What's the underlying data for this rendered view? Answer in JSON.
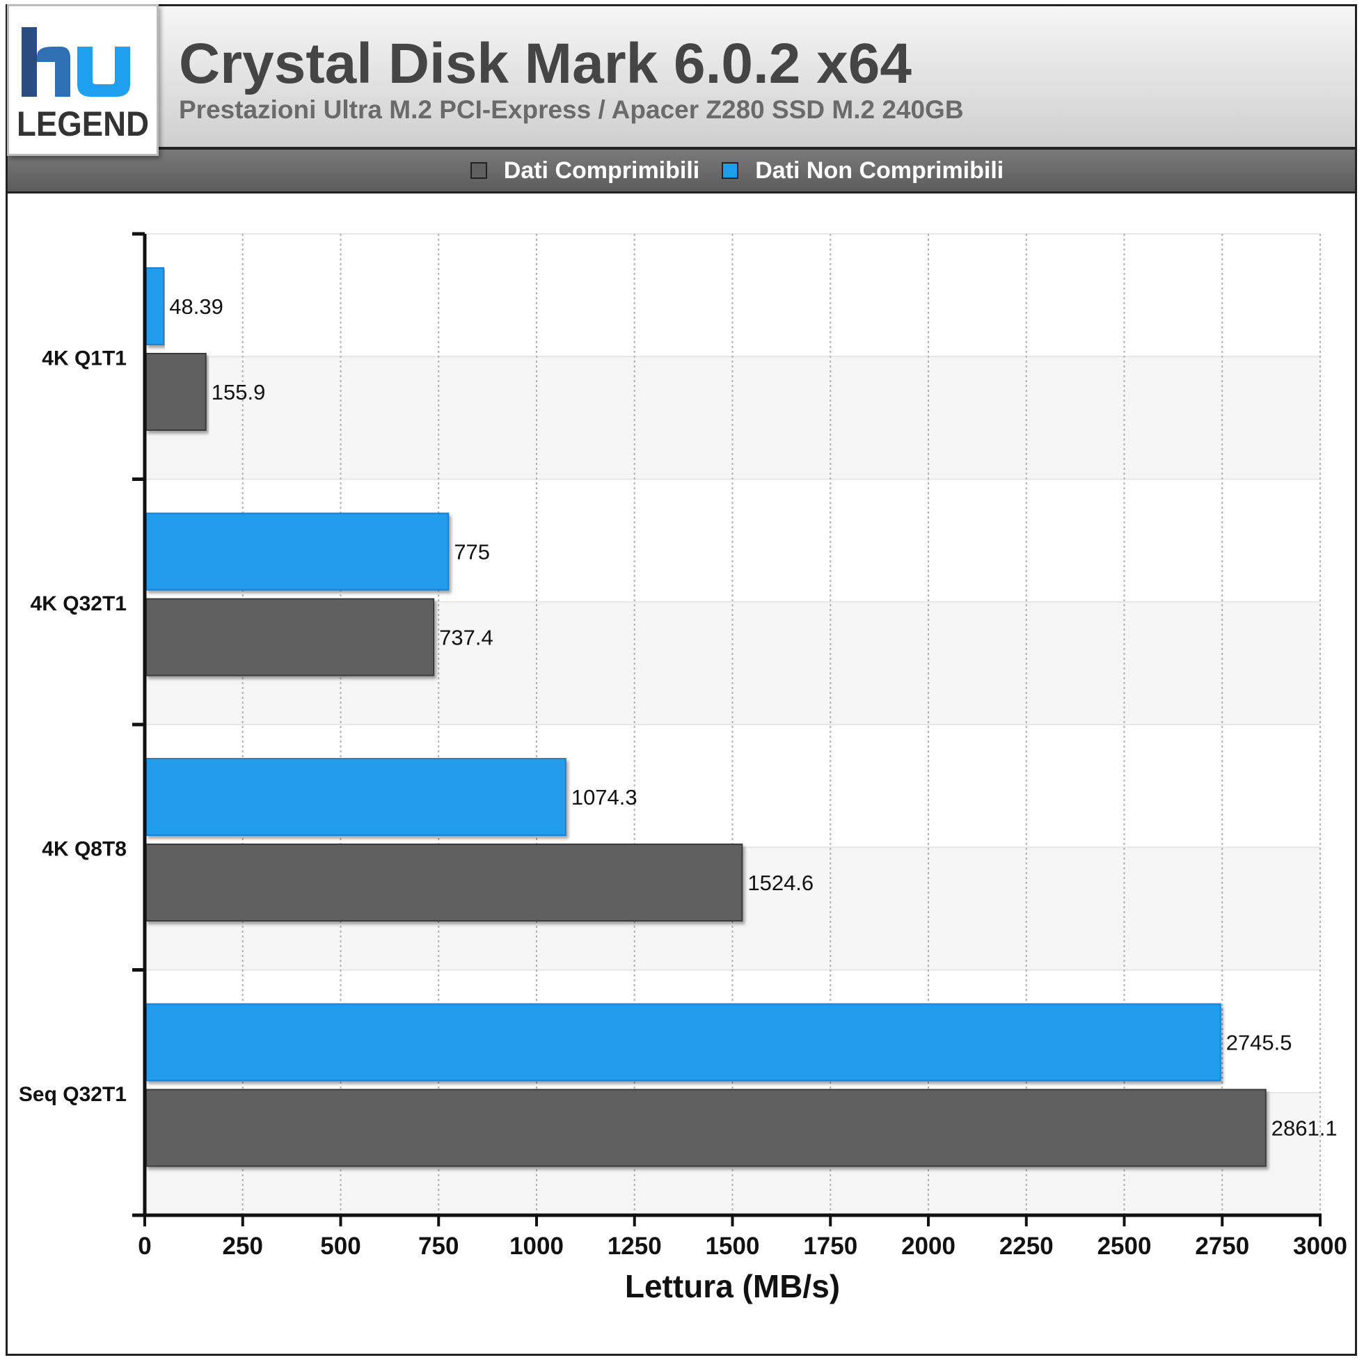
{
  "header": {
    "title": "Crystal Disk Mark 6.0.2 x64",
    "subtitle": "Prestazioni Ultra M.2 PCI-Express / Apacer Z280 SSD M.2 240GB"
  },
  "logo": {
    "text_top": "hu",
    "text_bottom": "LEGEND",
    "icon": "hu-legend-logo"
  },
  "colors": {
    "compressible": "#606060",
    "non_compressible": "#219ded",
    "header_bg": "#dcdcdc",
    "legend_bg": "#666666"
  },
  "chart_data": {
    "type": "bar",
    "orientation": "horizontal",
    "categories": [
      "4K Q1T1",
      "4K Q32T1",
      "4K Q8T8",
      "Seq Q32T1"
    ],
    "series": [
      {
        "name": "Dati Non Comprimibili",
        "color": "#219ded",
        "values": [
          48.39,
          775,
          1074.3,
          2745.5
        ],
        "labels": [
          "48.39",
          "775",
          "1074.3",
          "2745.5"
        ]
      },
      {
        "name": "Dati Comprimibili",
        "color": "#606060",
        "values": [
          155.9,
          737.4,
          1524.6,
          2861.1
        ],
        "labels": [
          "155.9",
          "737.4",
          "1524.6",
          "2861.1"
        ]
      }
    ],
    "xlabel": "Lettura (MB/s)",
    "xlim": [
      0,
      3000
    ],
    "xticks": [
      0,
      250,
      500,
      750,
      1000,
      1250,
      1500,
      1750,
      2000,
      2250,
      2500,
      2750,
      3000
    ],
    "grid": "vertical dotted",
    "legend": [
      "Dati Comprimibili",
      "Dati Non Comprimibili"
    ],
    "legend_placement": "top"
  }
}
